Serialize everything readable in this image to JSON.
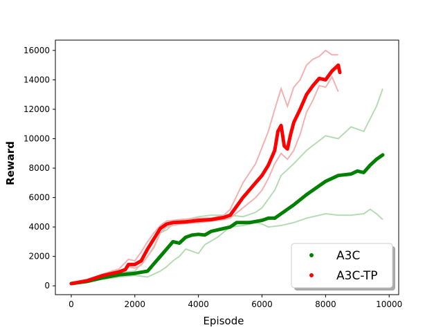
{
  "chart_data": {
    "type": "line",
    "title": "",
    "xlabel": "Episode",
    "ylabel": "Reward",
    "xlim": [
      -500,
      10300
    ],
    "ylim": [
      -600,
      16700
    ],
    "xticks": [
      0,
      2000,
      4000,
      6000,
      8000,
      10000
    ],
    "yticks": [
      0,
      2000,
      4000,
      6000,
      8000,
      10000,
      12000,
      14000,
      16000
    ],
    "grid": false,
    "legend_position": "bottom-right",
    "series": [
      {
        "name": "A3C",
        "color": "#008000",
        "band_color": "#b5dbb5",
        "mean": [
          [
            0,
            150
          ],
          [
            500,
            300
          ],
          [
            1000,
            550
          ],
          [
            1500,
            750
          ],
          [
            2000,
            850
          ],
          [
            2400,
            1000
          ],
          [
            2600,
            1500
          ],
          [
            2800,
            2000
          ],
          [
            3000,
            2500
          ],
          [
            3200,
            3000
          ],
          [
            3400,
            2900
          ],
          [
            3600,
            3300
          ],
          [
            3800,
            3450
          ],
          [
            4000,
            3500
          ],
          [
            4200,
            3450
          ],
          [
            4400,
            3700
          ],
          [
            4600,
            3800
          ],
          [
            4800,
            3900
          ],
          [
            5000,
            4000
          ],
          [
            5200,
            4300
          ],
          [
            5600,
            4300
          ],
          [
            6000,
            4450
          ],
          [
            6200,
            4600
          ],
          [
            6400,
            4600
          ],
          [
            6600,
            4900
          ],
          [
            7000,
            5500
          ],
          [
            7400,
            6200
          ],
          [
            7800,
            6800
          ],
          [
            8000,
            7100
          ],
          [
            8400,
            7500
          ],
          [
            8800,
            7600
          ],
          [
            9000,
            7800
          ],
          [
            9200,
            7700
          ],
          [
            9400,
            8200
          ],
          [
            9600,
            8600
          ],
          [
            9800,
            8900
          ]
        ],
        "upper": [
          [
            0,
            180
          ],
          [
            500,
            350
          ],
          [
            1000,
            650
          ],
          [
            1500,
            900
          ],
          [
            2000,
            1000
          ],
          [
            2400,
            2000
          ],
          [
            2600,
            2700
          ],
          [
            2800,
            3600
          ],
          [
            3000,
            3800
          ],
          [
            3200,
            4200
          ],
          [
            3400,
            4400
          ],
          [
            3600,
            4500
          ],
          [
            4000,
            4700
          ],
          [
            4400,
            4800
          ],
          [
            5000,
            4800
          ],
          [
            5400,
            4700
          ],
          [
            5800,
            5000
          ],
          [
            6000,
            5300
          ],
          [
            6400,
            6500
          ],
          [
            6600,
            7500
          ],
          [
            7000,
            8300
          ],
          [
            7400,
            9200
          ],
          [
            8000,
            10200
          ],
          [
            8400,
            10000
          ],
          [
            8800,
            10800
          ],
          [
            9200,
            10500
          ],
          [
            9600,
            12200
          ],
          [
            9800,
            13400
          ]
        ],
        "lower": [
          [
            0,
            120
          ],
          [
            500,
            250
          ],
          [
            1000,
            450
          ],
          [
            1500,
            600
          ],
          [
            2000,
            700
          ],
          [
            2400,
            600
          ],
          [
            2600,
            800
          ],
          [
            2800,
            1000
          ],
          [
            3000,
            1300
          ],
          [
            3200,
            1700
          ],
          [
            3400,
            2000
          ],
          [
            3600,
            2500
          ],
          [
            4000,
            2200
          ],
          [
            4200,
            2800
          ],
          [
            4600,
            3300
          ],
          [
            5000,
            4000
          ],
          [
            5400,
            4100
          ],
          [
            5800,
            4300
          ],
          [
            6000,
            4200
          ],
          [
            6200,
            4000
          ],
          [
            6600,
            4100
          ],
          [
            7000,
            4300
          ],
          [
            7400,
            4600
          ],
          [
            8000,
            4900
          ],
          [
            8400,
            4800
          ],
          [
            8800,
            4800
          ],
          [
            9200,
            4900
          ],
          [
            9400,
            5200
          ],
          [
            9600,
            4900
          ],
          [
            9800,
            4500
          ]
        ]
      },
      {
        "name": "A3C-TP",
        "color": "#ff0000",
        "band_color": "#f4b0b0",
        "mean": [
          [
            0,
            150
          ],
          [
            500,
            350
          ],
          [
            1000,
            700
          ],
          [
            1500,
            950
          ],
          [
            1700,
            1100
          ],
          [
            1800,
            1450
          ],
          [
            2000,
            1450
          ],
          [
            2200,
            1700
          ],
          [
            2400,
            2500
          ],
          [
            2600,
            3200
          ],
          [
            2800,
            3900
          ],
          [
            3000,
            4200
          ],
          [
            3200,
            4300
          ],
          [
            3600,
            4350
          ],
          [
            4000,
            4450
          ],
          [
            4400,
            4500
          ],
          [
            4800,
            4650
          ],
          [
            5000,
            4800
          ],
          [
            5200,
            5400
          ],
          [
            5400,
            6000
          ],
          [
            5600,
            6500
          ],
          [
            5800,
            7000
          ],
          [
            6000,
            7500
          ],
          [
            6200,
            8200
          ],
          [
            6400,
            9200
          ],
          [
            6500,
            10500
          ],
          [
            6600,
            10900
          ],
          [
            6700,
            9500
          ],
          [
            6800,
            9300
          ],
          [
            6900,
            10300
          ],
          [
            7000,
            11100
          ],
          [
            7200,
            12000
          ],
          [
            7400,
            13000
          ],
          [
            7600,
            13600
          ],
          [
            7800,
            14100
          ],
          [
            8000,
            14000
          ],
          [
            8200,
            14600
          ],
          [
            8400,
            15000
          ],
          [
            8450,
            14500
          ]
        ],
        "upper": [
          [
            0,
            180
          ],
          [
            500,
            400
          ],
          [
            1000,
            800
          ],
          [
            1500,
            1150
          ],
          [
            1800,
            1800
          ],
          [
            2000,
            1700
          ],
          [
            2200,
            2300
          ],
          [
            2400,
            3000
          ],
          [
            2600,
            3600
          ],
          [
            2800,
            4100
          ],
          [
            3000,
            4400
          ],
          [
            3400,
            4500
          ],
          [
            4000,
            4600
          ],
          [
            4400,
            4600
          ],
          [
            4800,
            4800
          ],
          [
            5000,
            5200
          ],
          [
            5400,
            7000
          ],
          [
            5800,
            8300
          ],
          [
            6200,
            10500
          ],
          [
            6400,
            12000
          ],
          [
            6600,
            13400
          ],
          [
            6800,
            12200
          ],
          [
            7000,
            13500
          ],
          [
            7200,
            14000
          ],
          [
            7400,
            15000
          ],
          [
            7600,
            15400
          ],
          [
            7800,
            15600
          ],
          [
            8000,
            16000
          ],
          [
            8200,
            15700
          ],
          [
            8400,
            15700
          ]
        ],
        "lower": [
          [
            0,
            120
          ],
          [
            500,
            300
          ],
          [
            1000,
            600
          ],
          [
            1500,
            850
          ],
          [
            1800,
            1300
          ],
          [
            2000,
            1200
          ],
          [
            2200,
            1400
          ],
          [
            2400,
            2000
          ],
          [
            2600,
            2600
          ],
          [
            2800,
            3600
          ],
          [
            3000,
            4000
          ],
          [
            3400,
            4200
          ],
          [
            4000,
            4300
          ],
          [
            4400,
            4400
          ],
          [
            4800,
            4500
          ],
          [
            5000,
            4600
          ],
          [
            5400,
            5300
          ],
          [
            5800,
            6000
          ],
          [
            6000,
            6500
          ],
          [
            6200,
            7300
          ],
          [
            6400,
            8300
          ],
          [
            6600,
            9000
          ],
          [
            6800,
            8600
          ],
          [
            7000,
            9200
          ],
          [
            7200,
            10300
          ],
          [
            7400,
            11800
          ],
          [
            7600,
            12600
          ],
          [
            7800,
            13600
          ],
          [
            8000,
            13500
          ],
          [
            8200,
            14200
          ],
          [
            8400,
            13200
          ]
        ]
      }
    ]
  }
}
